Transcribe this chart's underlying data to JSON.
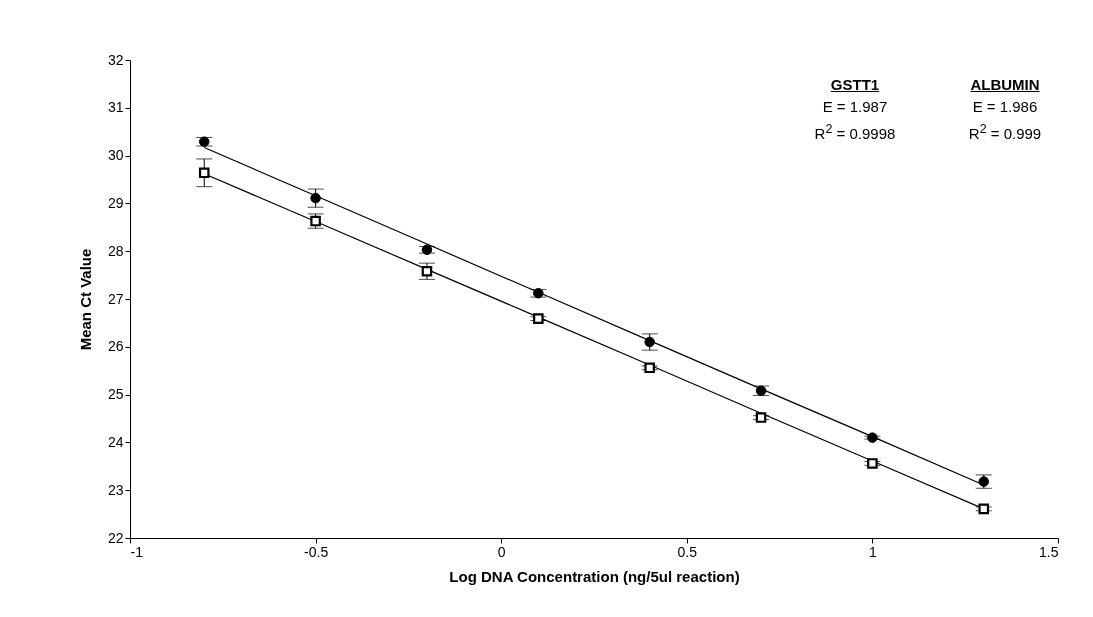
{
  "chart_data": {
    "type": "scatter",
    "xlabel": "Log DNA Concentration (ng/5ul reaction)",
    "ylabel": "Mean Ct Value",
    "xlim": [
      -1,
      1.5
    ],
    "xticks": [
      -1,
      -0.5,
      0,
      0.5,
      1,
      1.5
    ],
    "ylim": [
      22,
      32
    ],
    "yticks": [
      22,
      23,
      24,
      25,
      26,
      27,
      28,
      29,
      30,
      31,
      32
    ],
    "grid": false,
    "x": [
      -0.8,
      -0.5,
      -0.2,
      0.1,
      0.4,
      0.7,
      1.0,
      1.3
    ],
    "series": [
      {
        "type": "line",
        "color": "#000000",
        "marker": "none",
        "values": [
          30.17,
          29.16,
          28.15,
          27.14,
          26.13,
          25.12,
          24.12,
          23.11
        ]
      },
      {
        "type": "line",
        "color": "#000000",
        "marker": "none",
        "values": [
          29.62,
          28.62,
          27.62,
          26.62,
          25.62,
          24.61,
          23.61,
          22.61
        ]
      },
      {
        "color": "#000000",
        "marker": "circle",
        "values": [
          30.29,
          29.11,
          28.03,
          27.12,
          26.1,
          25.08,
          24.1,
          23.18
        ],
        "errors": [
          0.09,
          0.19,
          0.07,
          0.08,
          0.17,
          0.1,
          0.03,
          0.14
        ]
      },
      {
        "color": "#000000",
        "marker": "square",
        "values": [
          29.64,
          28.63,
          27.58,
          26.59,
          25.56,
          24.52,
          23.56,
          22.61
        ],
        "errors": [
          0.29,
          0.15,
          0.17,
          0.04,
          0.04,
          0.04,
          0.04,
          0.04
        ]
      }
    ],
    "annotations": [
      "GSTT1",
      "E = 1.987",
      "R$^{2}$ = 0.9998",
      "ALBUMIN",
      "E = 1.986",
      "R$^{2}$ = 0.999"
    ]
  }
}
